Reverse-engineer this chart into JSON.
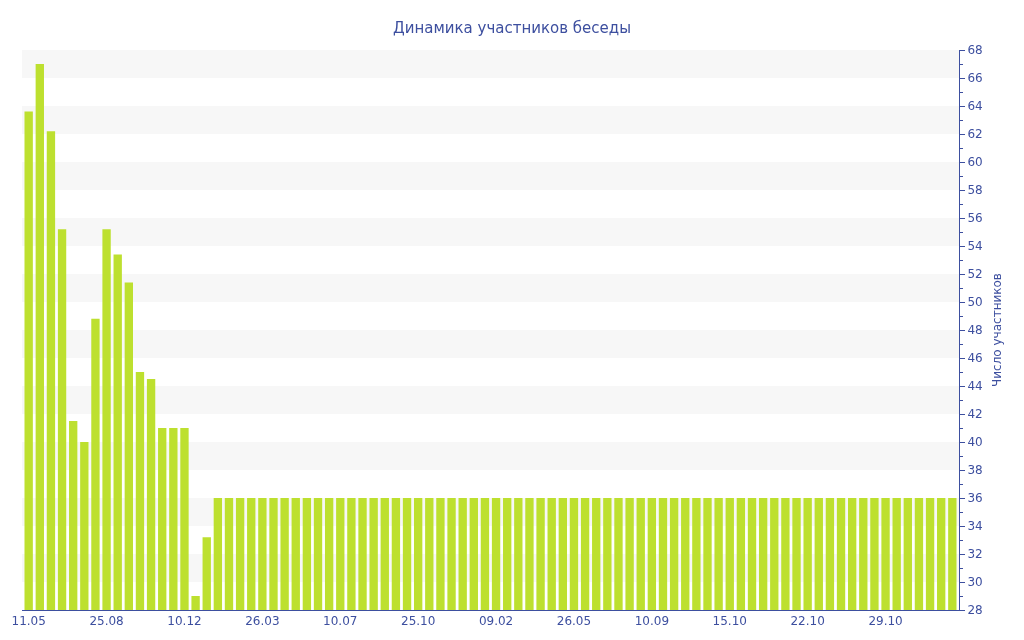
{
  "chart_data": {
    "type": "bar",
    "title": "Динамика участников беседы",
    "ylabel": "Число участников",
    "categories": [
      "11.05",
      null,
      null,
      null,
      null,
      null,
      null,
      "25.08",
      null,
      null,
      null,
      null,
      null,
      null,
      "10.12",
      null,
      null,
      null,
      null,
      null,
      null,
      "26.03",
      null,
      null,
      null,
      null,
      null,
      null,
      "10.07",
      null,
      null,
      null,
      null,
      null,
      null,
      "25.10",
      null,
      null,
      null,
      null,
      null,
      null,
      "09.02",
      null,
      null,
      null,
      null,
      null,
      null,
      "26.05",
      null,
      null,
      null,
      null,
      null,
      null,
      "10.09",
      null,
      null,
      null,
      null,
      null,
      null,
      "15.10",
      null,
      null,
      null,
      null,
      null,
      null,
      "22.10",
      null,
      null,
      null,
      null,
      null,
      null,
      "29.10",
      null,
      null,
      null,
      null,
      null,
      null
    ],
    "values": [
      63.6,
      67,
      62.2,
      55.2,
      41.5,
      40,
      48.8,
      55.2,
      53.4,
      51.4,
      45,
      44.5,
      41,
      41,
      41,
      29,
      33.2,
      36,
      36,
      36,
      36,
      36,
      36,
      36,
      36,
      36,
      36,
      36,
      36,
      36,
      36,
      36,
      36,
      36,
      36,
      36,
      36,
      36,
      36,
      36,
      36,
      36,
      36,
      36,
      36,
      36,
      36,
      36,
      36,
      36,
      36,
      36,
      36,
      36,
      36,
      36,
      36,
      36,
      36,
      36,
      36,
      36,
      36,
      36,
      36,
      36,
      36,
      36,
      36,
      36,
      36,
      36,
      36,
      36,
      36,
      36,
      36,
      36,
      36,
      36,
      36,
      36,
      36,
      36
    ],
    "color": "#bde02f",
    "ylim": [
      28,
      68
    ],
    "yticks": [
      28,
      30,
      32,
      34,
      36,
      38,
      40,
      42,
      44,
      46,
      48,
      50,
      52,
      54,
      56,
      58,
      60,
      62,
      64,
      66,
      68
    ],
    "legend": false,
    "bands": [
      {
        "axis": "y",
        "from": 30,
        "to": 32,
        "color": "#f7f7f7"
      },
      {
        "axis": "y",
        "from": 34,
        "to": 36,
        "color": "#f7f7f7"
      },
      {
        "axis": "y",
        "from": 38,
        "to": 40,
        "color": "#f7f7f7"
      },
      {
        "axis": "y",
        "from": 42,
        "to": 44,
        "color": "#f7f7f7"
      },
      {
        "axis": "y",
        "from": 46,
        "to": 48,
        "color": "#f7f7f7"
      },
      {
        "axis": "y",
        "from": 50,
        "to": 52,
        "color": "#f7f7f7"
      },
      {
        "axis": "y",
        "from": 54,
        "to": 56,
        "color": "#f7f7f7"
      },
      {
        "axis": "y",
        "from": 58,
        "to": 60,
        "color": "#f7f7f7"
      },
      {
        "axis": "y",
        "from": 62,
        "to": 64,
        "color": "#f7f7f7"
      },
      {
        "axis": "y",
        "from": 66,
        "to": 68,
        "color": "#f7f7f7"
      }
    ]
  }
}
